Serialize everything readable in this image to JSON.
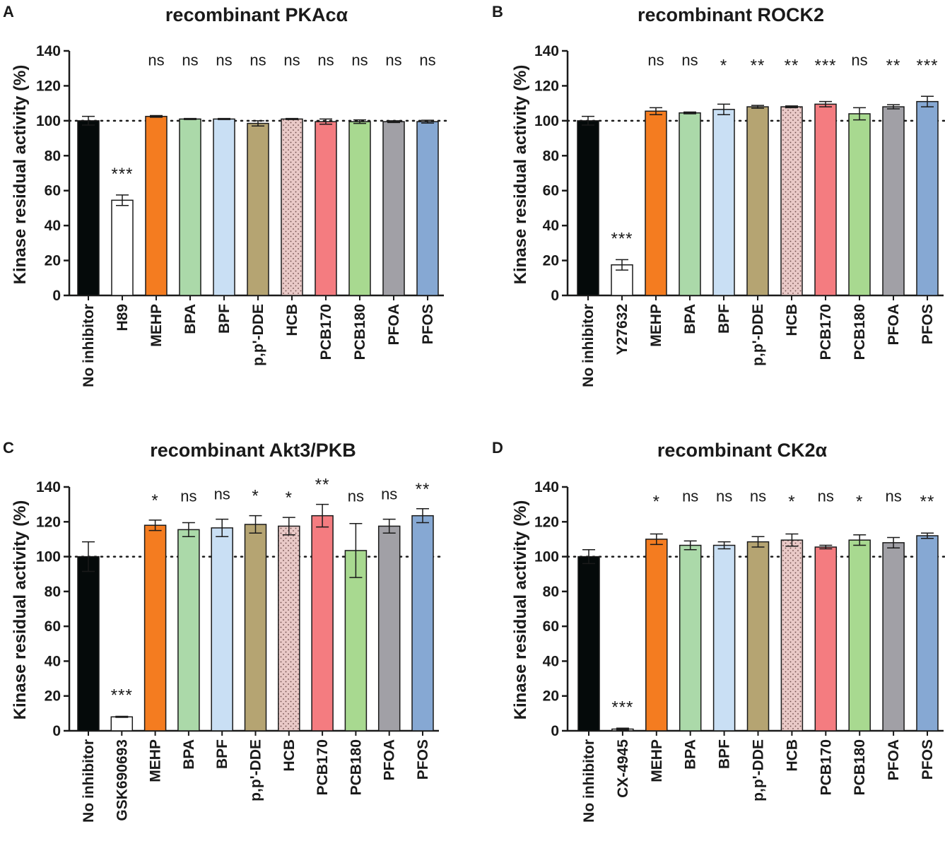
{
  "figure": {
    "y_tick_values": [
      0,
      20,
      40,
      60,
      80,
      100,
      120,
      140
    ]
  },
  "chart_data": [
    {
      "type": "bar",
      "panel": "A",
      "title": "recombinant PKAcα",
      "ylabel": "Kinase residual activity (%)",
      "xlabel": "",
      "ylim": [
        0,
        140
      ],
      "reference_line": 100,
      "categories": [
        "No inhibitor",
        "H89",
        "MEHP",
        "BPA",
        "BPF",
        "p,p'-DDE",
        "HCB",
        "PCB170",
        "PCB180",
        "PFOA",
        "PFOS"
      ],
      "values": [
        100,
        54.5,
        102.5,
        101,
        101,
        98.5,
        101,
        99.5,
        99.5,
        99.5,
        99.5
      ],
      "errors": [
        2.5,
        3,
        0.5,
        0.3,
        0.3,
        1.5,
        0.3,
        1.5,
        1,
        0.5,
        0.8
      ],
      "significance": [
        "",
        "***",
        "ns",
        "ns",
        "ns",
        "ns",
        "ns",
        "ns",
        "ns",
        "ns",
        "ns"
      ],
      "colors": [
        "#050a0a",
        "#ffffff",
        "#f47c20",
        "#abd9a9",
        "#c9dff4",
        "#b5a472",
        "#e9c9c7",
        "#f47c80",
        "#a8d990",
        "#a1a0a6",
        "#86a8d3"
      ],
      "dotted": [
        false,
        false,
        false,
        false,
        false,
        false,
        true,
        false,
        false,
        false,
        false
      ]
    },
    {
      "type": "bar",
      "panel": "B",
      "title": "recombinant ROCK2",
      "ylabel": "Kinase residual activity (%)",
      "xlabel": "",
      "ylim": [
        0,
        140
      ],
      "reference_line": 100,
      "categories": [
        "No inhibitor",
        "Y27632",
        "MEHP",
        "BPA",
        "BPF",
        "p,p'-DDE",
        "HCB",
        "PCB170",
        "PCB180",
        "PFOA",
        "PFOS"
      ],
      "values": [
        100,
        17.5,
        105.5,
        104.5,
        106.5,
        108,
        108,
        109.5,
        104,
        108,
        111
      ],
      "errors": [
        2.5,
        3,
        2,
        0.5,
        3,
        0.8,
        0.5,
        1.5,
        3.5,
        1.2,
        3
      ],
      "significance": [
        "",
        "***",
        "ns",
        "ns",
        "*",
        "**",
        "**",
        "***",
        "ns",
        "**",
        "***"
      ],
      "colors": [
        "#050a0a",
        "#ffffff",
        "#f47c20",
        "#abd9a9",
        "#c9dff4",
        "#b5a472",
        "#e9c9c7",
        "#f47c80",
        "#a8d990",
        "#a1a0a6",
        "#86a8d3"
      ],
      "dotted": [
        false,
        false,
        false,
        false,
        false,
        false,
        true,
        false,
        false,
        false,
        false
      ]
    },
    {
      "type": "bar",
      "panel": "C",
      "title": "recombinant Akt3/PKB",
      "ylabel": "Kinase residual activity (%)",
      "xlabel": "",
      "ylim": [
        0,
        140
      ],
      "reference_line": 100,
      "categories": [
        "No inhibitor",
        "GSK690693",
        "MEHP",
        "BPA",
        "BPF",
        "p,p'-DDE",
        "HCB",
        "PCB170",
        "PCB180",
        "PFOA",
        "PFOS"
      ],
      "values": [
        100,
        8,
        118,
        115.5,
        116.5,
        118.5,
        117.5,
        123.5,
        103.5,
        117.5,
        123.5
      ],
      "errors": [
        8.5,
        0.3,
        3,
        4,
        5,
        5,
        5,
        6.5,
        15.5,
        4,
        4
      ],
      "significance": [
        "",
        "***",
        "*",
        "ns",
        "ns",
        "*",
        "*",
        "**",
        "ns",
        "ns",
        "**"
      ],
      "colors": [
        "#050a0a",
        "#ffffff",
        "#f47c20",
        "#abd9a9",
        "#c9dff4",
        "#b5a472",
        "#e9c9c7",
        "#f47c80",
        "#a8d990",
        "#a1a0a6",
        "#86a8d3"
      ],
      "dotted": [
        false,
        false,
        false,
        false,
        false,
        false,
        true,
        false,
        false,
        false,
        false
      ]
    },
    {
      "type": "bar",
      "panel": "D",
      "title": "recombinant CK2α",
      "ylabel": "Kinase residual activity (%)",
      "xlabel": "",
      "ylim": [
        0,
        140
      ],
      "reference_line": 100,
      "categories": [
        "No inhibitor",
        "CX-4945",
        "MEHP",
        "BPA",
        "BPF",
        "p,p'-DDE",
        "HCB",
        "PCB170",
        "PCB180",
        "PFOA",
        "PFOS"
      ],
      "values": [
        100,
        1,
        110,
        106.5,
        106.5,
        108.5,
        109.5,
        105.5,
        109.5,
        108,
        112
      ],
      "errors": [
        4,
        0.5,
        3,
        2.5,
        2,
        3,
        3.5,
        1,
        3,
        3,
        1.5
      ],
      "significance": [
        "",
        "***",
        "*",
        "ns",
        "ns",
        "ns",
        "*",
        "ns",
        "*",
        "ns",
        "**"
      ],
      "colors": [
        "#050a0a",
        "#ffffff",
        "#f47c20",
        "#abd9a9",
        "#c9dff4",
        "#b5a472",
        "#e9c9c7",
        "#f47c80",
        "#a8d990",
        "#a1a0a6",
        "#86a8d3"
      ],
      "dotted": [
        false,
        false,
        false,
        false,
        false,
        false,
        true,
        false,
        false,
        false,
        false
      ]
    }
  ]
}
